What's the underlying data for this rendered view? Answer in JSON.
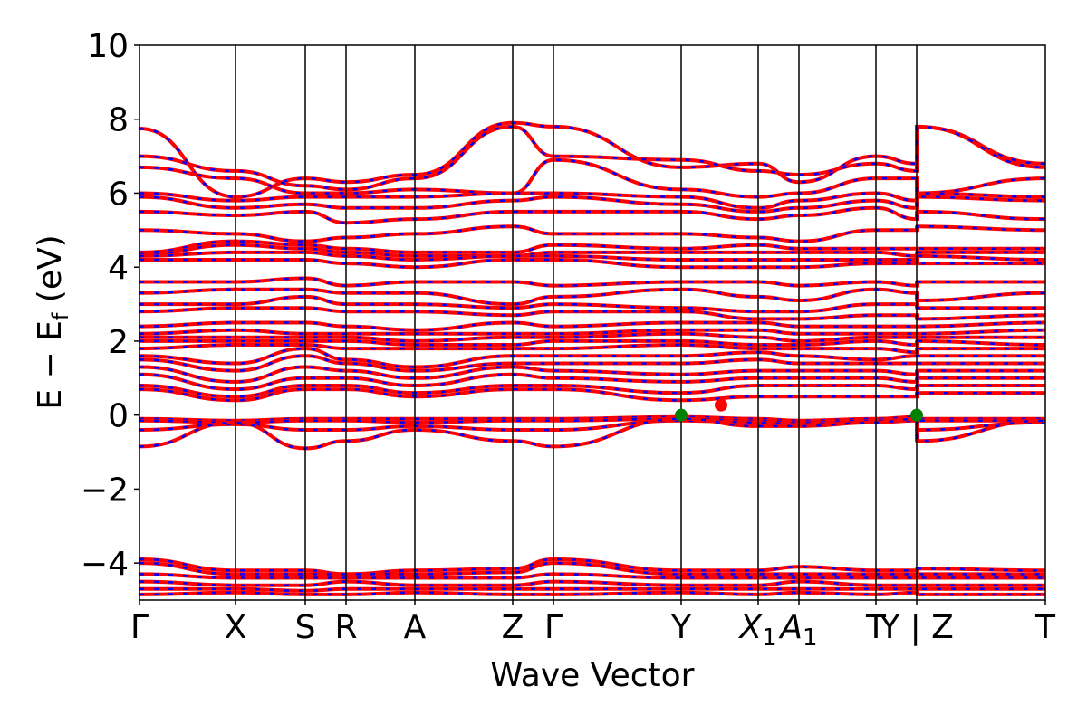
{
  "chart_data": {
    "type": "line",
    "xlabel": "Wave Vector",
    "ylabel_parts": {
      "main": "E − E",
      "sub": "f",
      "unit": " (eV)"
    },
    "ylim": [
      -5,
      10
    ],
    "yticks": [
      {
        "value": 10,
        "label": "10"
      },
      {
        "value": 8,
        "label": "8"
      },
      {
        "value": 6,
        "label": "6"
      },
      {
        "value": 4,
        "label": "4"
      },
      {
        "value": 2,
        "label": "2"
      },
      {
        "value": 0,
        "label": "0"
      },
      {
        "value": -2,
        "label": "−2"
      },
      {
        "value": -4,
        "label": "−4"
      }
    ],
    "xlim": [
      0,
      100
    ],
    "kpoints": [
      {
        "x": 0,
        "label": "Γ"
      },
      {
        "x": 10.6,
        "label": "X"
      },
      {
        "x": 18.3,
        "label": "S"
      },
      {
        "x": 22.8,
        "label": "R"
      },
      {
        "x": 30.4,
        "label": "A"
      },
      {
        "x": 41.2,
        "label": "Z"
      },
      {
        "x": 45.7,
        "label": "Γ"
      },
      {
        "x": 59.8,
        "label": "Y"
      },
      {
        "x": 68.3,
        "label": "X",
        "sub": "1"
      },
      {
        "x": 72.8,
        "label": "A",
        "sub": "1"
      },
      {
        "x": 81.3,
        "label": "T"
      },
      {
        "x": 85.8,
        "label": "Y | Z"
      },
      {
        "x": 100,
        "label": "T"
      }
    ],
    "spin_colors": {
      "up": "#ff0000",
      "down": "#0000ff"
    },
    "markers": [
      {
        "x": 59.8,
        "y": 0.0,
        "color": "#008000",
        "role": "VBM"
      },
      {
        "x": 64.2,
        "y": 0.27,
        "color": "#ff0000",
        "role": "CBM"
      },
      {
        "x": 85.8,
        "y": 0.0,
        "color": "#008000",
        "role": "VBM"
      }
    ],
    "bands": [
      {
        "y": [
          7.75,
          5.9,
          6.4,
          6.3,
          6.5,
          7.9,
          7.8,
          6.7,
          6.8,
          6.3,
          7.0,
          6.8,
          7.8,
          6.8
        ]
      },
      {
        "y": [
          7.0,
          6.6,
          6.2,
          6.1,
          6.4,
          7.8,
          7.0,
          6.9,
          6.6,
          6.5,
          6.8,
          6.6,
          7.8,
          6.7
        ]
      },
      {
        "y": [
          6.7,
          6.4,
          6.0,
          6.0,
          6.1,
          6.0,
          6.9,
          6.1,
          5.9,
          6.0,
          6.4,
          6.4,
          6.0,
          6.4
        ]
      },
      {
        "y": [
          6.0,
          5.8,
          5.9,
          5.9,
          5.9,
          6.0,
          6.0,
          5.9,
          5.6,
          5.8,
          6.0,
          5.8,
          6.0,
          5.9
        ]
      },
      {
        "y": [
          5.9,
          5.6,
          5.7,
          5.6,
          5.6,
          5.8,
          5.9,
          5.7,
          5.5,
          5.6,
          5.8,
          5.6,
          5.9,
          5.8
        ]
      },
      {
        "y": [
          5.5,
          5.4,
          5.5,
          5.2,
          5.3,
          5.5,
          5.5,
          5.5,
          5.3,
          5.4,
          5.6,
          5.3,
          5.5,
          5.3
        ]
      },
      {
        "y": [
          5.0,
          4.9,
          4.7,
          4.8,
          4.9,
          5.1,
          4.9,
          4.9,
          4.8,
          4.7,
          5.0,
          5.0,
          5.1,
          5.0
        ]
      },
      {
        "y": [
          4.4,
          4.7,
          4.6,
          4.5,
          4.4,
          4.4,
          4.6,
          4.5,
          4.6,
          4.5,
          4.5,
          4.5,
          4.5,
          4.5
        ]
      },
      {
        "y": [
          4.35,
          4.6,
          4.5,
          4.4,
          4.3,
          4.3,
          4.4,
          4.4,
          4.4,
          4.4,
          4.4,
          4.3,
          4.4,
          4.4
        ]
      },
      {
        "y": [
          4.3,
          4.4,
          4.4,
          4.3,
          4.2,
          4.3,
          4.3,
          4.2,
          4.2,
          4.2,
          4.2,
          4.2,
          4.3,
          4.2
        ]
      },
      {
        "y": [
          4.2,
          4.2,
          4.2,
          4.1,
          4.0,
          4.2,
          4.2,
          4.0,
          4.0,
          4.0,
          4.1,
          4.1,
          4.1,
          4.1
        ]
      },
      {
        "y": [
          3.6,
          3.6,
          3.7,
          3.5,
          3.6,
          3.6,
          3.5,
          3.6,
          3.6,
          3.5,
          3.6,
          3.5,
          3.6,
          3.6
        ]
      },
      {
        "y": [
          3.3,
          3.4,
          3.4,
          3.3,
          3.3,
          3.0,
          3.2,
          3.4,
          3.2,
          3.1,
          3.4,
          3.3,
          3.1,
          3.3
        ]
      },
      {
        "y": [
          3.0,
          3.0,
          3.2,
          3.0,
          3.0,
          2.9,
          3.0,
          2.9,
          2.8,
          2.8,
          3.0,
          3.0,
          2.9,
          2.9
        ]
      },
      {
        "y": [
          2.8,
          2.9,
          2.9,
          2.8,
          2.8,
          2.7,
          2.8,
          2.8,
          2.6,
          2.6,
          2.7,
          2.7,
          2.6,
          2.7
        ]
      },
      {
        "y": [
          2.4,
          2.5,
          2.5,
          2.4,
          2.3,
          2.5,
          2.4,
          2.5,
          2.5,
          2.4,
          2.4,
          2.4,
          2.4,
          2.5
        ]
      },
      {
        "y": [
          2.2,
          2.3,
          2.2,
          2.2,
          2.2,
          2.2,
          2.2,
          2.3,
          2.3,
          2.2,
          2.2,
          2.2,
          2.2,
          2.3
        ]
      },
      {
        "y": [
          2.1,
          2.1,
          2.1,
          2.1,
          2.0,
          2.1,
          2.1,
          2.2,
          2.1,
          2.0,
          2.1,
          2.1,
          2.1,
          2.1
        ]
      },
      {
        "y": [
          2.0,
          2.0,
          2.0,
          2.0,
          1.9,
          1.9,
          2.0,
          2.0,
          1.9,
          1.9,
          2.0,
          1.9,
          2.0,
          1.9
        ]
      },
      {
        "y": [
          1.8,
          1.9,
          1.9,
          1.8,
          1.8,
          1.8,
          1.8,
          1.9,
          1.8,
          1.8,
          1.8,
          1.7,
          1.8,
          1.8
        ]
      },
      {
        "y": [
          1.6,
          1.4,
          1.8,
          1.5,
          1.3,
          1.6,
          1.6,
          1.6,
          1.7,
          1.6,
          1.5,
          1.6,
          1.6,
          1.6
        ]
      },
      {
        "y": [
          1.5,
          1.2,
          1.6,
          1.4,
          1.2,
          1.4,
          1.4,
          1.4,
          1.5,
          1.4,
          1.4,
          1.4,
          1.4,
          1.4
        ]
      },
      {
        "y": [
          1.3,
          0.9,
          1.3,
          1.2,
          1.0,
          1.3,
          1.2,
          1.1,
          1.2,
          1.2,
          1.2,
          1.1,
          1.2,
          1.2
        ]
      },
      {
        "y": [
          1.1,
          0.7,
          1.0,
          1.0,
          0.8,
          1.1,
          1.0,
          0.9,
          1.0,
          1.0,
          1.0,
          0.9,
          1.0,
          1.0
        ]
      },
      {
        "y": [
          0.8,
          0.5,
          0.8,
          0.8,
          0.6,
          0.8,
          0.8,
          0.6,
          0.8,
          0.8,
          0.8,
          0.7,
          0.8,
          0.8
        ]
      },
      {
        "y": [
          0.7,
          0.4,
          0.7,
          0.7,
          0.5,
          0.7,
          0.7,
          0.4,
          0.5,
          0.5,
          0.5,
          0.5,
          0.6,
          0.6
        ]
      },
      {
        "y": [
          -0.1,
          -0.15,
          -0.1,
          -0.1,
          -0.1,
          -0.1,
          -0.1,
          -0.05,
          -0.1,
          -0.15,
          -0.1,
          -0.05,
          -0.1,
          -0.1
        ]
      },
      {
        "y": [
          -0.15,
          -0.2,
          -0.15,
          -0.15,
          -0.2,
          -0.15,
          -0.15,
          -0.1,
          -0.15,
          -0.2,
          -0.15,
          -0.1,
          -0.15,
          -0.15
        ]
      },
      {
        "y": [
          -0.4,
          -0.25,
          -0.4,
          -0.4,
          -0.3,
          -0.4,
          -0.4,
          -0.15,
          -0.2,
          -0.25,
          -0.2,
          -0.15,
          -0.4,
          -0.2
        ]
      },
      {
        "y": [
          -0.85,
          -0.2,
          -0.9,
          -0.7,
          -0.4,
          -0.7,
          -0.85,
          -0.1,
          -0.3,
          -0.3,
          -0.2,
          -0.1,
          -0.7,
          -0.15
        ]
      },
      {
        "y": [
          -3.9,
          -4.2,
          -4.2,
          -4.3,
          -4.2,
          -4.15,
          -3.9,
          -4.2,
          -4.2,
          -4.1,
          -4.2,
          -4.2,
          -4.15,
          -4.2
        ]
      },
      {
        "y": [
          -4.0,
          -4.3,
          -4.3,
          -4.3,
          -4.3,
          -4.25,
          -4.0,
          -4.3,
          -4.3,
          -4.3,
          -4.3,
          -4.3,
          -4.3,
          -4.3
        ]
      },
      {
        "y": [
          -4.3,
          -4.4,
          -4.4,
          -4.4,
          -4.4,
          -4.4,
          -4.3,
          -4.4,
          -4.4,
          -4.4,
          -4.4,
          -4.4,
          -4.4,
          -4.4
        ]
      },
      {
        "y": [
          -4.5,
          -4.6,
          -4.6,
          -4.5,
          -4.6,
          -4.6,
          -4.5,
          -4.6,
          -4.6,
          -4.5,
          -4.6,
          -4.6,
          -4.6,
          -4.6
        ]
      },
      {
        "y": [
          -4.7,
          -4.7,
          -4.75,
          -4.7,
          -4.7,
          -4.7,
          -4.7,
          -4.7,
          -4.7,
          -4.7,
          -4.7,
          -4.7,
          -4.7,
          -4.7
        ]
      },
      {
        "y": [
          -4.85,
          -4.8,
          -4.85,
          -4.85,
          -4.8,
          -4.85,
          -4.85,
          -4.8,
          -4.85,
          -4.8,
          -4.85,
          -4.8,
          -4.85,
          -4.85
        ]
      }
    ],
    "band_x": [
      0,
      10.6,
      18.3,
      22.8,
      30.4,
      41.2,
      45.7,
      59.8,
      68.3,
      72.8,
      81.3,
      85.8,
      85.81,
      100
    ]
  }
}
